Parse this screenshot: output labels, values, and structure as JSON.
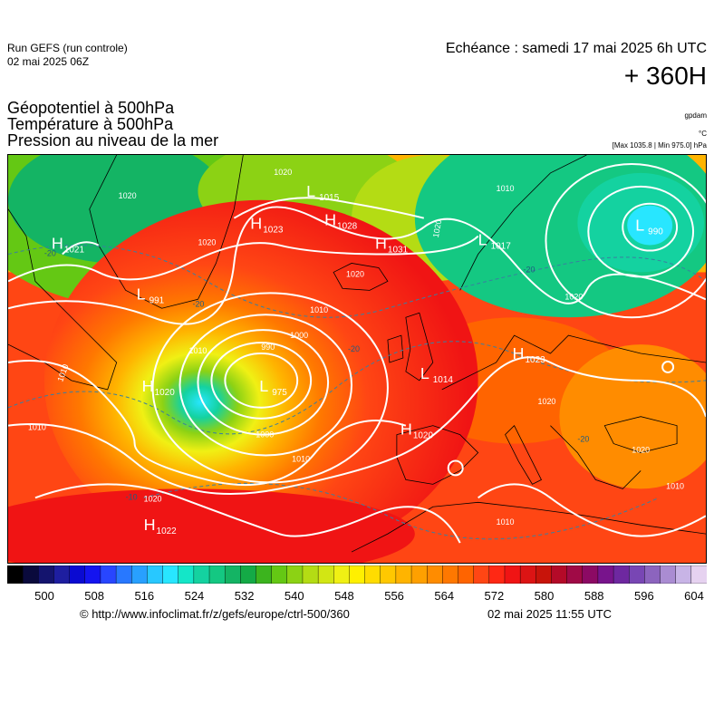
{
  "header": {
    "run_title": "Run GEFS (run controle)",
    "run_date": "02 mai 2025 06Z",
    "echeance": "Echéance : samedi 17 mai 2025 6h UTC",
    "horizon": "+ 360H"
  },
  "parameters": [
    {
      "label": "Géopotentiel à 500hPa",
      "unit": "gpdam"
    },
    {
      "label": "Température à 500hPa",
      "unit": "°C"
    },
    {
      "label": "Pression au niveau de la mer",
      "unit": "[Max 1035.8 | Min 975.0] hPa"
    }
  ],
  "colorbar": {
    "ticks": [
      "500",
      "508",
      "516",
      "524",
      "532",
      "540",
      "548",
      "556",
      "564",
      "572",
      "580",
      "588",
      "596",
      "604"
    ],
    "colors": [
      "#000000",
      "#0a0a3c",
      "#14146e",
      "#1e1ea0",
      "#0a0ad2",
      "#1414f0",
      "#2846ff",
      "#2878ff",
      "#28a0ff",
      "#28c8ff",
      "#28e6ff",
      "#14e6c8",
      "#14d2a0",
      "#14c882",
      "#14b464",
      "#14aa46",
      "#3cb41e",
      "#64c814",
      "#8cd214",
      "#b4dc14",
      "#d2e614",
      "#f0f014",
      "#fff000",
      "#ffdc00",
      "#ffc800",
      "#ffb400",
      "#ffa000",
      "#ff8c00",
      "#ff7800",
      "#ff6400",
      "#ff4614",
      "#ff2814",
      "#f01414",
      "#dc1414",
      "#c8140a",
      "#b40a28",
      "#a00a46",
      "#8c0a64",
      "#78148c",
      "#6e28a0",
      "#7846b4",
      "#8c64be",
      "#aa8cd2",
      "#c8b4e6",
      "#e6d2f0"
    ]
  },
  "map": {
    "pressure_systems": [
      {
        "type": "H",
        "value": "1021"
      },
      {
        "type": "L",
        "value": "991"
      },
      {
        "type": "H",
        "value": "1023"
      },
      {
        "type": "L",
        "value": "1015"
      },
      {
        "type": "H",
        "value": "1028"
      },
      {
        "type": "H",
        "value": "1031"
      },
      {
        "type": "L",
        "value": "1017"
      },
      {
        "type": "L",
        "value": "990"
      },
      {
        "type": "L",
        "value": "975"
      },
      {
        "type": "H",
        "value": "1020"
      },
      {
        "type": "H",
        "value": "1020"
      },
      {
        "type": "H",
        "value": "1022"
      },
      {
        "type": "L",
        "value": "1014"
      },
      {
        "type": "H",
        "value": "1023"
      }
    ],
    "isobar_labels": [
      "1020",
      "1020",
      "1020",
      "1010",
      "1010",
      "1010",
      "1000",
      "990",
      "1000",
      "1010",
      "1010",
      "1020",
      "1010",
      "1010",
      "1020",
      "1020",
      "1020",
      "1020",
      "1010",
      "1020"
    ],
    "temp_labels": [
      "-20",
      "-20",
      "-20",
      "-10",
      "-20",
      "-20"
    ]
  },
  "footer": {
    "url": "© http://www.infoclimat.fr/z/gefs/europe/ctrl-500/360",
    "timestamp": "02 mai 2025 11:55 UTC"
  }
}
